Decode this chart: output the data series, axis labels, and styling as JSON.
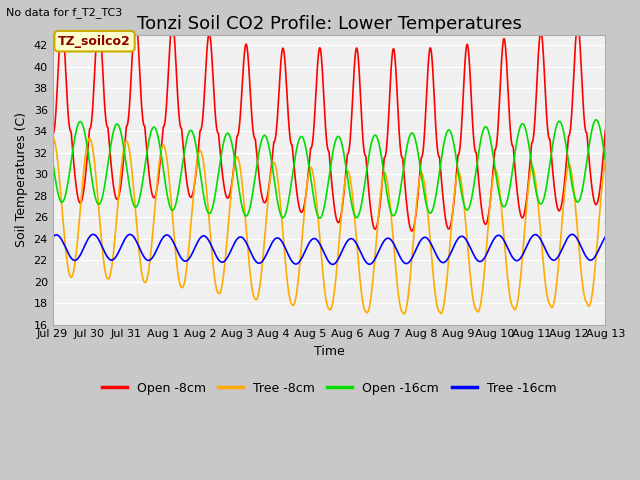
{
  "title": "Tonzi Soil CO2 Profile: Lower Temperatures",
  "xlabel": "Time",
  "ylabel": "Soil Temperatures (C)",
  "annotation": "No data for f_T2_TC3",
  "legend_box_label": "TZ_soilco2",
  "ylim": [
    16,
    43
  ],
  "yticks": [
    16,
    18,
    20,
    22,
    24,
    26,
    28,
    30,
    32,
    34,
    36,
    38,
    40,
    42
  ],
  "outer_bg": "#c8c8c8",
  "plot_bg": "#e8e8e8",
  "inner_plot_bg": "#f0f0f0",
  "series": [
    {
      "label": "Open -8cm",
      "color": "#ff0000"
    },
    {
      "label": "Tree -8cm",
      "color": "#ffaa00"
    },
    {
      "label": "Open -16cm",
      "color": "#00dd00"
    },
    {
      "label": "Tree -16cm",
      "color": "#0000ff"
    }
  ],
  "xtick_positions": [
    0,
    1,
    2,
    3,
    4,
    5,
    6,
    7,
    8,
    9,
    10,
    11,
    12,
    13,
    14,
    15
  ],
  "xtick_labels": [
    "Jul 29",
    "Jul 30",
    "Jul 31",
    "Aug 1",
    "Aug 2",
    "Aug 3",
    "Aug 4",
    "Aug 5",
    "Aug 6",
    "Aug 7",
    "Aug 8",
    "Aug 9",
    "Aug 10",
    "Aug 11",
    "Aug 12",
    "Aug 13"
  ],
  "line_width": 1.2,
  "title_fontsize": 13,
  "axis_label_fontsize": 9,
  "tick_fontsize": 8,
  "legend_fontsize": 9,
  "n_points": 2000,
  "x_start": 0,
  "x_end": 15.0
}
